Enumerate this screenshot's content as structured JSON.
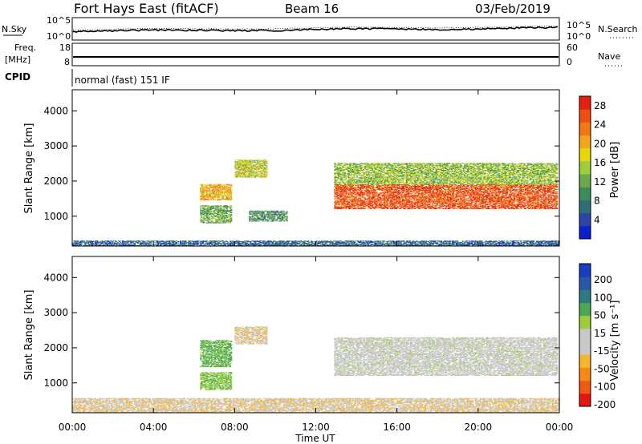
{
  "header": {
    "radar": "Fort Hays East (fitACF)",
    "beam": "Beam 16",
    "date": "03/Feb/2019"
  },
  "noise_panel": {
    "left_label": "N.Sky",
    "left_ticks": [
      "10^5",
      "10^0"
    ],
    "right_label": "N.Search",
    "right_ticks": [
      "10^5",
      "10^0"
    ]
  },
  "freq_panel": {
    "left_label_line1": "Freq.",
    "left_label_line2": "[MHz]",
    "left_ticks": [
      "18",
      "8"
    ],
    "right_label": "Nave",
    "right_ticks": [
      "60",
      "0"
    ]
  },
  "cpid": {
    "label": "CPID",
    "value": "normal (fast) 151 IF"
  },
  "colors": {
    "power_scale": [
      "#0a1ed2",
      "#2a45a5",
      "#2e6e78",
      "#3c8c5a",
      "#6aa84a",
      "#9ccd3a",
      "#e8d60a",
      "#f5a51a",
      "#f07a0f",
      "#ef4e10",
      "#e61e0f"
    ],
    "velocity_scale": [
      "#e8150f",
      "#f05a10",
      "#f58a14",
      "#f5b42a",
      "#c8c8c8",
      "#c8c8c8",
      "#9ccd3a",
      "#4aa852",
      "#2e7a82",
      "#2a58a8",
      "#1a3cbe"
    ]
  },
  "chart_data": [
    {
      "type": "heatmap",
      "name": "power",
      "ylabel": "Slant Range [km]",
      "xlabel": "",
      "x_ticks": [
        "00:00",
        "04:00",
        "08:00",
        "12:00",
        "16:00",
        "20:00",
        "00:00"
      ],
      "y_ticks": [
        "1000",
        "2000",
        "3000",
        "4000"
      ],
      "ylim": [
        150,
        4600
      ],
      "xlim_hours": [
        0,
        24
      ],
      "colorbar": {
        "label": "Power [dB]",
        "ticks": [
          "4",
          "8",
          "12",
          "16",
          "20",
          "24",
          "28"
        ],
        "range": [
          0,
          30
        ]
      },
      "regions": [
        {
          "t": [
            6.3,
            7.8
          ],
          "range": [
            1450,
            1900
          ],
          "value": 20
        },
        {
          "t": [
            6.3,
            7.8
          ],
          "range": [
            800,
            1300
          ],
          "value": 12
        },
        {
          "t": [
            8.0,
            9.6
          ],
          "range": [
            2100,
            2600
          ],
          "value": 16
        },
        {
          "t": [
            8.7,
            10.6
          ],
          "range": [
            850,
            1150
          ],
          "value": 10
        },
        {
          "t": [
            12.9,
            23.9
          ],
          "range": [
            1200,
            1900
          ],
          "value": 26
        },
        {
          "t": [
            12.9,
            23.9
          ],
          "range": [
            1900,
            2500
          ],
          "value": 14
        },
        {
          "t": [
            0,
            24
          ],
          "range": [
            150,
            300
          ],
          "value": 6
        }
      ]
    },
    {
      "type": "heatmap",
      "name": "velocity",
      "ylabel": "Slant Range [km]",
      "xlabel": "Time UT",
      "x_ticks": [
        "00:00",
        "04:00",
        "08:00",
        "12:00",
        "16:00",
        "20:00",
        "00:00"
      ],
      "y_ticks": [
        "1000",
        "2000",
        "3000",
        "4000"
      ],
      "ylim": [
        150,
        4600
      ],
      "xlim_hours": [
        0,
        24
      ],
      "colorbar": {
        "label": "Velocity [m s⁻¹]",
        "ticks": [
          "200",
          "100",
          "50",
          "15",
          "-15",
          "-50",
          "-100",
          "-200"
        ],
        "range": [
          -250,
          250
        ]
      },
      "regions": [
        {
          "t": [
            6.3,
            7.8
          ],
          "range": [
            1450,
            2200
          ],
          "value": 80
        },
        {
          "t": [
            6.3,
            7.8
          ],
          "range": [
            800,
            1300
          ],
          "value": 60
        },
        {
          "t": [
            8.0,
            9.6
          ],
          "range": [
            2100,
            2600
          ],
          "value": -60
        },
        {
          "t": [
            12.9,
            23.9
          ],
          "range": [
            1200,
            2300
          ],
          "value": 0
        },
        {
          "t": [
            0,
            24
          ],
          "range": [
            150,
            550
          ],
          "value": -60
        }
      ]
    }
  ]
}
